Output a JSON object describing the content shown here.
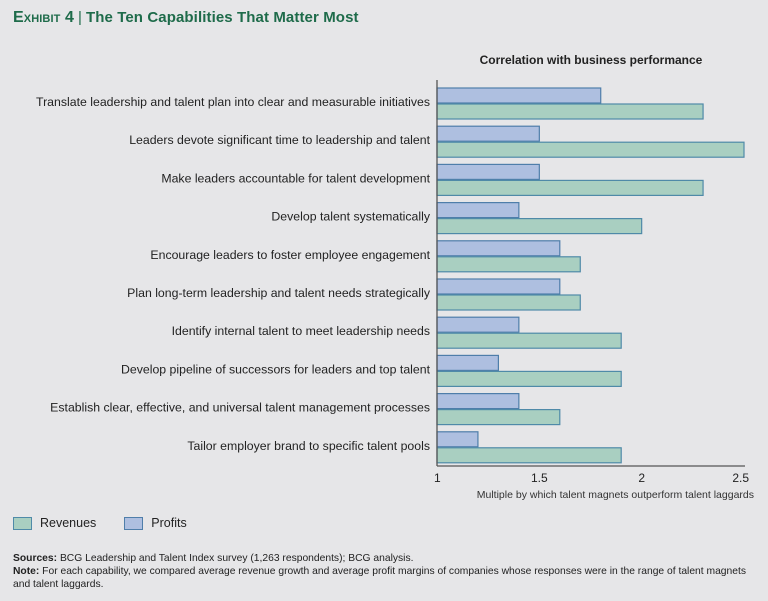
{
  "header": {
    "exhibit_label": "Exhibit 4",
    "separator": "|",
    "title": "The Ten Capabilities That Matter Most"
  },
  "colors": {
    "revenues_fill": "#a9cfc1",
    "revenues_stroke": "#4f8aa8",
    "profits_fill": "#aebfe0",
    "profits_stroke": "#4f7eaa",
    "title": "#1e6b4a",
    "background": "#e6e6e8"
  },
  "chart_data": {
    "type": "bar",
    "orientation": "horizontal",
    "title": "Correlation with business performance",
    "xlabel": "Multiple by which talent magnets outperform talent laggards",
    "ylabel": "",
    "xlim": [
      1,
      2.5
    ],
    "xticks": [
      1,
      1.5,
      2,
      2.5
    ],
    "xtick_labels": [
      "1",
      "1.5",
      "2",
      "2.5"
    ],
    "grid": false,
    "legend_position": "bottom-left",
    "categories": [
      "Translate leadership and talent plan into clear and measurable initiatives",
      "Leaders devote significant time to leadership and talent",
      "Make leaders accountable for talent development",
      "Develop talent systematically",
      "Encourage leaders to foster employee engagement",
      "Plan long-term leadership and talent needs strategically",
      "Identify internal talent to meet leadership needs",
      "Develop pipeline of successors for leaders and top talent",
      "Establish clear, effective, and universal talent management processes",
      "Tailor employer brand to specific talent pools"
    ],
    "series": [
      {
        "name": "Profits",
        "values": [
          1.8,
          1.5,
          1.5,
          1.4,
          1.6,
          1.6,
          1.4,
          1.3,
          1.4,
          1.2
        ]
      },
      {
        "name": "Revenues",
        "values": [
          2.3,
          2.5,
          2.3,
          2.0,
          1.7,
          1.7,
          1.9,
          1.9,
          1.6,
          1.9
        ]
      }
    ]
  },
  "legend": {
    "items": [
      {
        "label": "Revenues"
      },
      {
        "label": "Profits"
      }
    ]
  },
  "footnotes": {
    "sources_label": "Sources:",
    "sources_text": " BCG Leadership and Talent Index survey (1,263 respondents); BCG analysis.",
    "note_label": "Note:",
    "note_text": " For each capability, we compared average revenue growth and average profit margins of companies whose responses were in the range of talent magnets and talent laggards."
  }
}
